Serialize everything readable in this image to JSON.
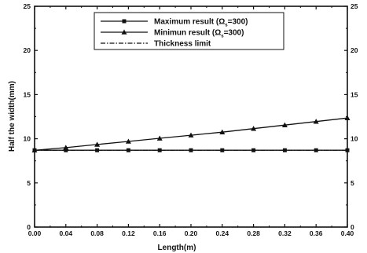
{
  "chart_data": {
    "type": "line",
    "xlabel": "Length(m)",
    "ylabel": "Half the width(mm)",
    "xlim": [
      0.0,
      0.4
    ],
    "ylim": [
      0,
      25
    ],
    "x_ticks": [
      "0.00",
      "0.04",
      "0.08",
      "0.12",
      "0.16",
      "0.20",
      "0.24",
      "0.28",
      "0.32",
      "0.36",
      "0.40"
    ],
    "y_ticks": [
      "0",
      "5",
      "10",
      "15",
      "20",
      "25"
    ],
    "right_y_ticks": [
      "0",
      "5",
      "10",
      "15",
      "20",
      "25"
    ],
    "grid": false,
    "legend_position": "top-center",
    "series": [
      {
        "name": "Maximum result (Ω",
        "name_subscript": "s",
        "name_suffix": "=300)",
        "marker": "square",
        "line_style": "solid",
        "x": [
          0.0,
          0.04,
          0.08,
          0.12,
          0.16,
          0.2,
          0.24,
          0.28,
          0.32,
          0.36,
          0.4
        ],
        "y": [
          8.7,
          8.7,
          8.7,
          8.7,
          8.7,
          8.7,
          8.7,
          8.7,
          8.7,
          8.7,
          8.7
        ]
      },
      {
        "name": "Minimun result (Ω",
        "name_subscript": "s",
        "name_suffix": "=300)",
        "marker": "triangle",
        "line_style": "solid",
        "x": [
          0.0,
          0.04,
          0.08,
          0.12,
          0.16,
          0.2,
          0.24,
          0.28,
          0.32,
          0.36,
          0.4
        ],
        "y": [
          8.7,
          9.0,
          9.35,
          9.7,
          10.05,
          10.4,
          10.75,
          11.15,
          11.55,
          11.95,
          12.35
        ]
      },
      {
        "name": "Thickness limit",
        "marker": "none",
        "line_style": "dash-dot",
        "x": [
          0.0,
          0.4
        ],
        "y": [
          8.7,
          8.7
        ]
      }
    ]
  }
}
